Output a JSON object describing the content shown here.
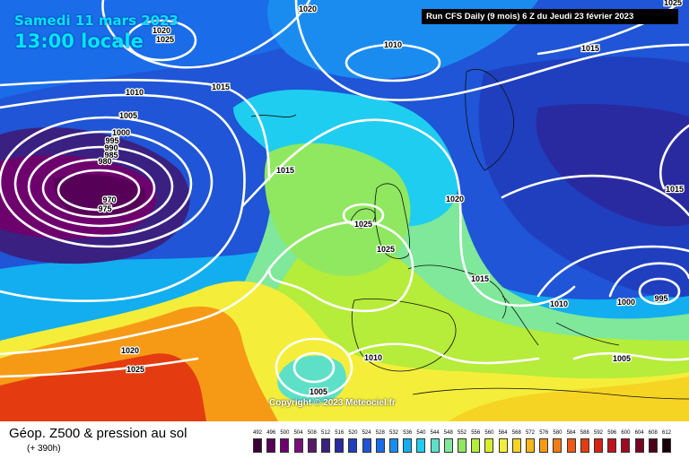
{
  "header": {
    "date": "Samedi 11 mars 2023",
    "time": "13:00 locale",
    "run_info": "Run CFS Daily (9 mois) 6 Z du Jeudi 23 février 2023"
  },
  "footer": {
    "title": "Géop. Z500 & pression au sol",
    "subtitle": "(+ 390h)",
    "copyright": "Copyright © 2023 Meteociel.fr"
  },
  "colorscale": {
    "labels": [
      "492",
      "496",
      "500",
      "504",
      "508",
      "512",
      "516",
      "520",
      "524",
      "528",
      "532",
      "536",
      "540",
      "544",
      "548",
      "552",
      "556",
      "560",
      "564",
      "568",
      "572",
      "576",
      "580",
      "584",
      "588",
      "592",
      "596",
      "600",
      "604",
      "608",
      "612"
    ],
    "colors": [
      "#3a0038",
      "#560057",
      "#6e006e",
      "#7a0f7a",
      "#5a1a6a",
      "#3a2080",
      "#2a2aa0",
      "#1f3fbf",
      "#1f55d6",
      "#1a6ce8",
      "#1a8cf0",
      "#12aef0",
      "#1fcdf0",
      "#5ee0c8",
      "#7fe89a",
      "#8fe860",
      "#b6ec3a",
      "#d8ee2a",
      "#f4ee3a",
      "#f6d424",
      "#f6b81a",
      "#f69a16",
      "#f47a14",
      "#ee5a12",
      "#e43c10",
      "#d62414",
      "#c0141c",
      "#a00a20",
      "#780420",
      "#4c0218",
      "#1a0008"
    ]
  },
  "isobar_labels": [
    "1020",
    "1025",
    "1020",
    "1010",
    "1015",
    "1010",
    "1015",
    "1005",
    "1000",
    "995",
    "990",
    "985",
    "980",
    "970",
    "975",
    "1015",
    "1025",
    "1025",
    "1020",
    "1015",
    "1015",
    "995",
    "1000",
    "1010",
    "1020",
    "1025",
    "1010",
    "1005",
    "1005",
    "1025",
    "1025"
  ]
}
